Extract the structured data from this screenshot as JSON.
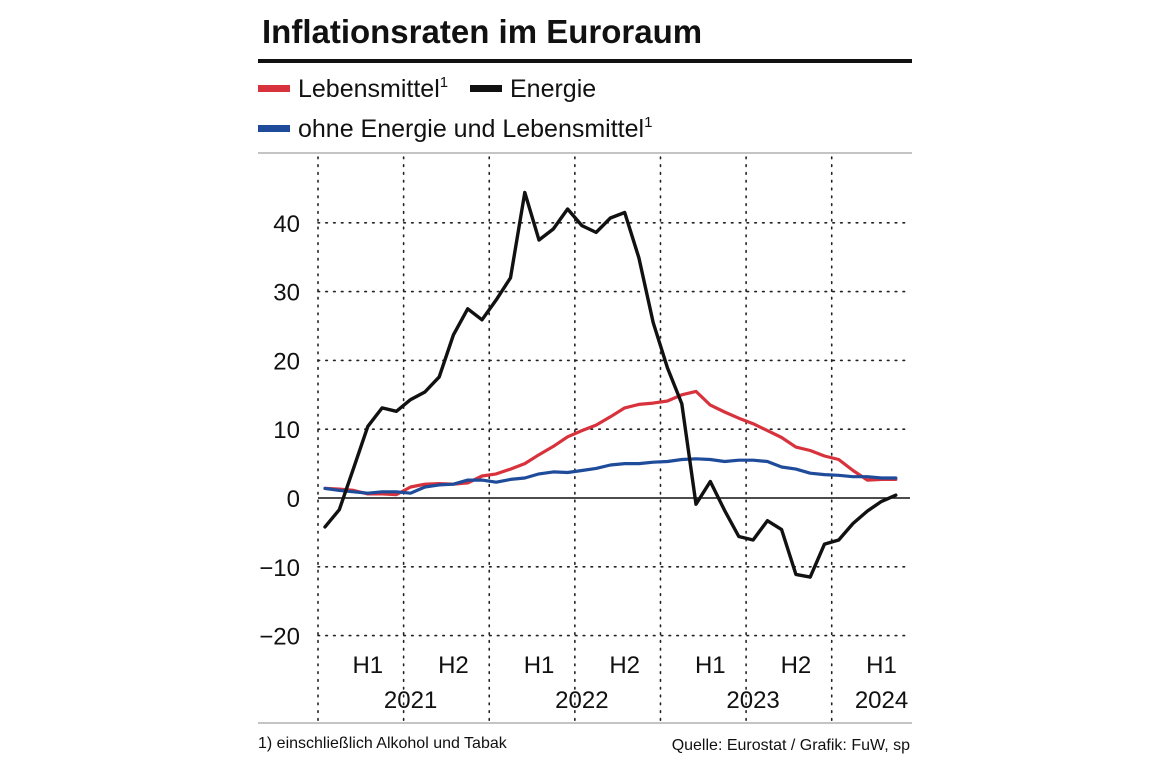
{
  "chart_data": {
    "type": "line",
    "title": "Inflationsraten im Euroraum",
    "ylim": [
      -20,
      45
    ],
    "y_ticks": [
      {
        "value": 40,
        "label": "40"
      },
      {
        "value": 30,
        "label": "30"
      },
      {
        "value": 20,
        "label": "20"
      },
      {
        "value": 10,
        "label": "10"
      },
      {
        "value": 0,
        "label": "0"
      },
      {
        "value": -10,
        "label": "−10"
      },
      {
        "value": -20,
        "label": "−20"
      }
    ],
    "x_start": "2021-01",
    "x_end": "2024-03",
    "half_labels": [
      {
        "label": "H1",
        "month": 3
      },
      {
        "label": "H2",
        "month": 9
      },
      {
        "label": "H1",
        "month": 15
      },
      {
        "label": "H2",
        "month": 21
      },
      {
        "label": "H1",
        "month": 27
      },
      {
        "label": "H2",
        "month": 33
      },
      {
        "label": "H1",
        "month": 39
      }
    ],
    "year_labels": [
      {
        "label": "2021",
        "month": 6
      },
      {
        "label": "2022",
        "month": 18
      },
      {
        "label": "2023",
        "month": 30
      },
      {
        "label": "2024",
        "month": 39
      }
    ],
    "legend": [
      {
        "name": "Lebensmittel",
        "sup": "1",
        "color": "#d8323c"
      },
      {
        "name": "Energie",
        "sup": "",
        "color": "#111111"
      },
      {
        "name": "ohne Energie und Lebensmittel",
        "sup": "1",
        "color": "#1f4b9b"
      }
    ],
    "series": [
      {
        "name": "Energie",
        "color": "#111111",
        "values": [
          -4.2,
          -1.7,
          4.3,
          10.4,
          13.1,
          12.6,
          14.3,
          15.4,
          17.6,
          23.7,
          27.5,
          25.9,
          28.8,
          32.0,
          44.4,
          37.5,
          39.1,
          42.0,
          39.6,
          38.6,
          40.7,
          41.5,
          34.9,
          25.5,
          18.9,
          13.7,
          -0.9,
          2.4,
          -1.8,
          -5.6,
          -6.1,
          -3.3,
          -4.6,
          -11.1,
          -11.5,
          -6.7,
          -6.1,
          -3.7,
          -1.9,
          -0.5,
          0.4
        ],
        "start": 0
      },
      {
        "name": "Lebensmittel",
        "color": "#d8323c",
        "values": [
          1.4,
          1.3,
          1.1,
          0.6,
          0.6,
          0.5,
          1.6,
          2.0,
          2.1,
          2.0,
          2.2,
          3.2,
          3.5,
          4.2,
          5.0,
          6.3,
          7.5,
          8.9,
          9.8,
          10.6,
          11.8,
          13.1,
          13.6,
          13.8,
          14.1,
          15.0,
          15.5,
          13.5,
          12.5,
          11.6,
          10.8,
          9.8,
          8.8,
          7.4,
          6.9,
          6.1,
          5.6,
          4.0,
          2.6,
          2.7,
          2.7
        ],
        "start": 0
      },
      {
        "name": "ohne Energie und Lebensmittel",
        "color": "#1f4b9b",
        "values": [
          1.4,
          1.1,
          0.9,
          0.7,
          0.9,
          0.9,
          0.7,
          1.6,
          1.9,
          2.0,
          2.6,
          2.6,
          2.3,
          2.7,
          2.9,
          3.5,
          3.8,
          3.7,
          4.0,
          4.3,
          4.8,
          5.0,
          5.0,
          5.2,
          5.3,
          5.6,
          5.7,
          5.6,
          5.3,
          5.5,
          5.5,
          5.3,
          4.5,
          4.2,
          3.6,
          3.4,
          3.3,
          3.1,
          3.1,
          2.9,
          2.9
        ],
        "start": 0
      }
    ],
    "footnote": "1) einschließlich Alkohol und Tabak",
    "source": "Quelle: Eurostat / Grafik: FuW, sp"
  }
}
